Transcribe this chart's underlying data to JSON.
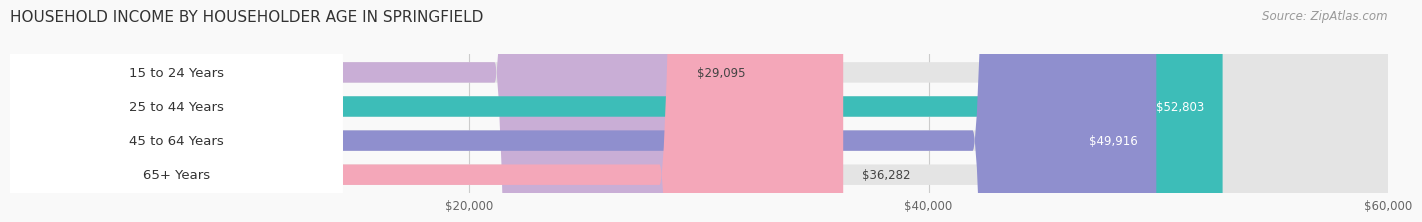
{
  "title": "HOUSEHOLD INCOME BY HOUSEHOLDER AGE IN SPRINGFIELD",
  "source": "Source: ZipAtlas.com",
  "categories": [
    "15 to 24 Years",
    "25 to 44 Years",
    "45 to 64 Years",
    "65+ Years"
  ],
  "values": [
    29095,
    52803,
    49916,
    36282
  ],
  "bar_colors": [
    "#c9aed6",
    "#3dbdb8",
    "#8f8fce",
    "#f4a7b9"
  ],
  "value_labels": [
    "$29,095",
    "$52,803",
    "$49,916",
    "$36,282"
  ],
  "value_inside": [
    false,
    true,
    true,
    false
  ],
  "xmin": 0,
  "xmax": 60000,
  "xticks": [
    20000,
    40000,
    60000
  ],
  "xtick_labels": [
    "$20,000",
    "$40,000",
    "$60,000"
  ],
  "title_fontsize": 11,
  "label_fontsize": 9.5,
  "value_fontsize": 8.5,
  "source_fontsize": 8.5,
  "background_color": "#f9f9f9",
  "bar_bg_color": "#e4e4e4",
  "label_box_color": "white"
}
